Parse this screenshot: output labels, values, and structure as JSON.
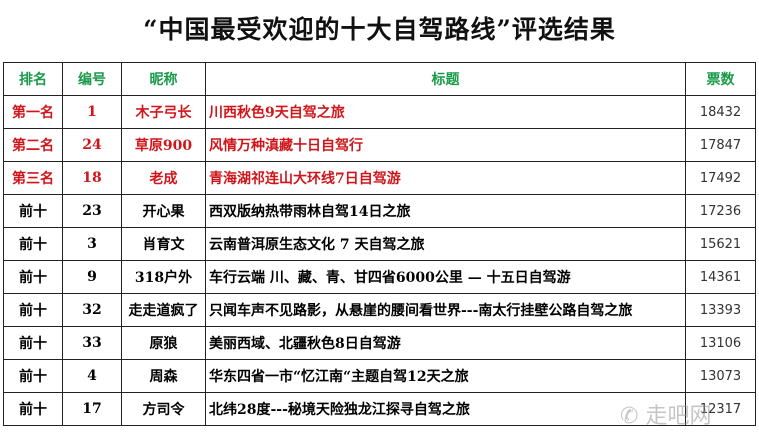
{
  "title": "“中国最受欢迎的十大自驾路线”评选结果",
  "headers": [
    "排名",
    "编号",
    "昵称",
    "标题",
    "票数"
  ],
  "rows": [
    [
      "第一名",
      "1",
      "木子弓长",
      "川西秋色9天自驾之旅",
      "18432"
    ],
    [
      "第二名",
      "24",
      "草原900",
      "风情万种滇藏十日自驾行",
      "17847"
    ],
    [
      "第三名",
      "18",
      "老成",
      "青海湖祁连山大环线7日自驾游",
      "17492"
    ],
    [
      "前十",
      "23",
      "开心果",
      "西双版纳热带雨林自驾14日之旅",
      "17236"
    ],
    [
      "前十",
      "3",
      "肖育文",
      "云南普洱原生态文化 7 天自驾之旅",
      "15621"
    ],
    [
      "前十",
      "9",
      "318户外",
      "车行云端 川、藏、青、甘四省6000公里 — 十五日自驾游",
      "14361"
    ],
    [
      "前十",
      "32",
      "走走道疯了",
      "只闻车声不见路影，从悬崖的腰间看世界---南太行挂壁公路自驾之旅",
      "13393"
    ],
    [
      "前十",
      "33",
      "原狼",
      "美丽西域、北疆秋色8日自驾游",
      "13106"
    ],
    [
      "前十",
      "4",
      "周森",
      "华东四省一市“忆江南“主题自驾12天之旅",
      "13073"
    ],
    [
      "前十",
      "17",
      "方司令",
      "北纬28度---秘境天险独龙江探寻自驾之旅",
      "12317"
    ]
  ],
  "watermark": "走吧网",
  "colors": {
    "header": "#1a9a4a",
    "top3": "#d0161b"
  }
}
